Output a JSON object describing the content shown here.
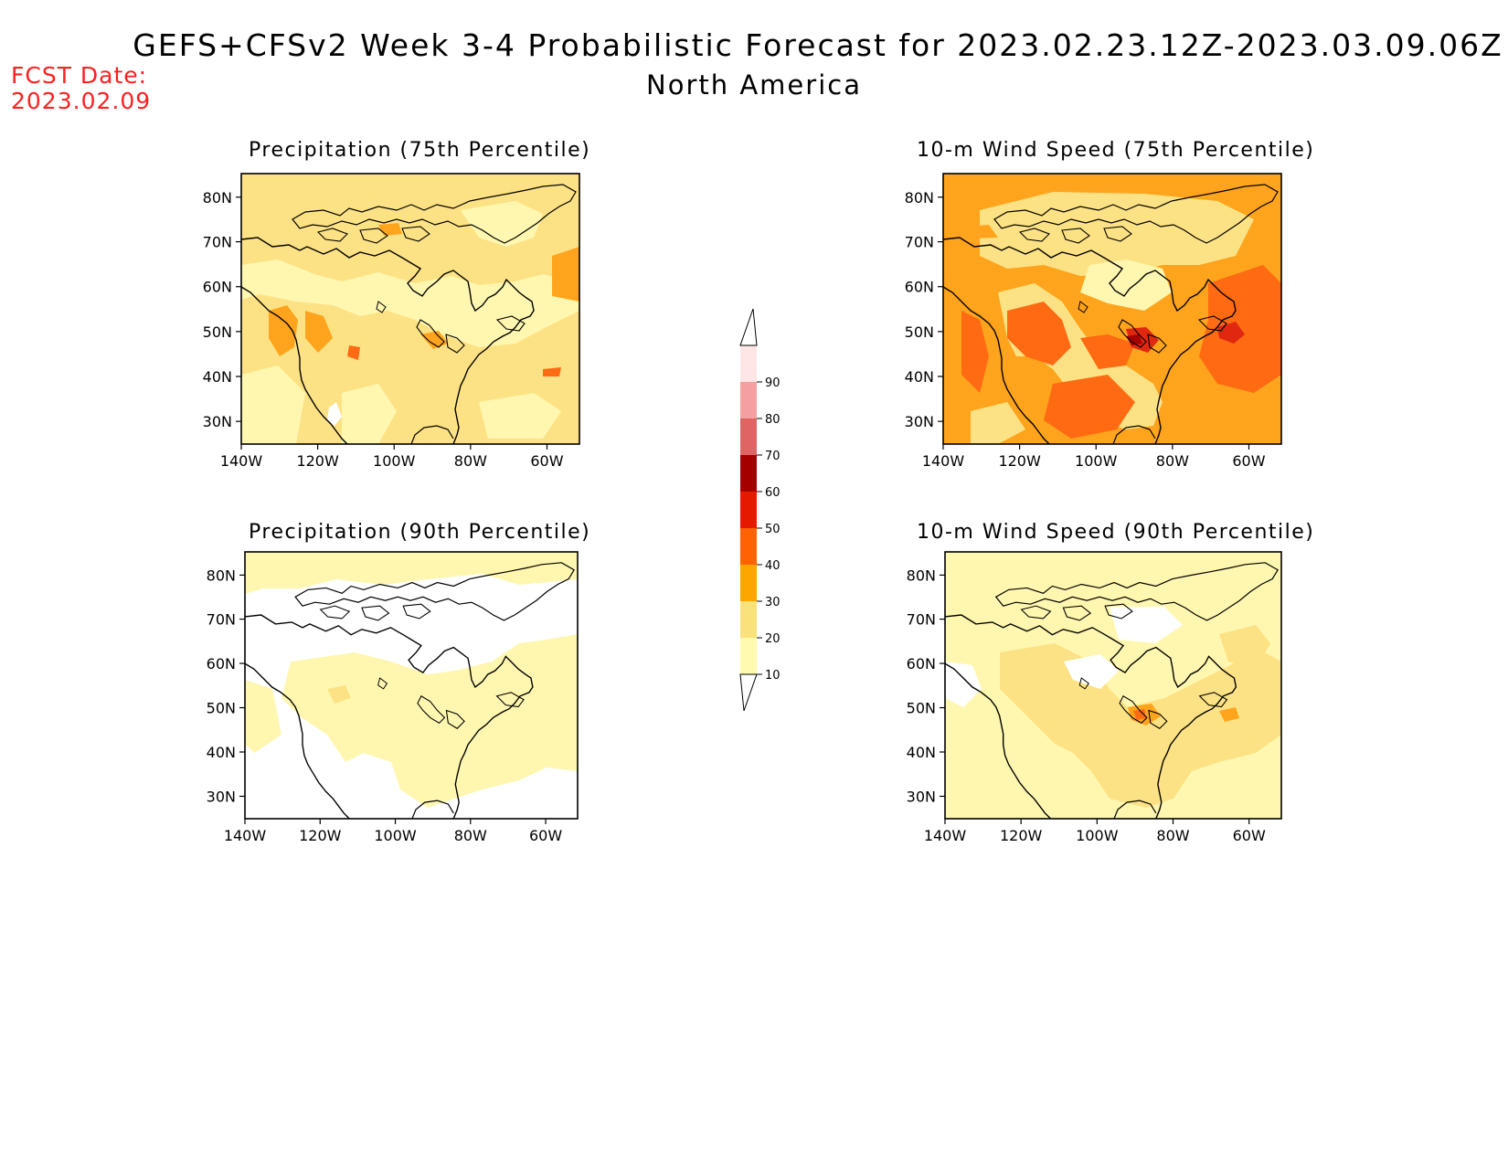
{
  "header": {
    "title": "GEFS+CFSv2 Week 3-4 Probabilistic Forecast for 2023.02.23.12Z-2023.03.09.06Z",
    "subtitle": "North America",
    "fcst_label": "FCST Date:",
    "fcst_date": "2023.02.09"
  },
  "panels": [
    {
      "id": "precip75",
      "title": "Precipitation (75th Percentile)"
    },
    {
      "id": "wind75",
      "title": "10-m Wind Speed (75th Percentile)"
    },
    {
      "id": "precip90",
      "title": "Precipitation (90th Percentile)"
    },
    {
      "id": "wind90",
      "title": "10-m Wind Speed (90th Percentile)"
    }
  ],
  "axes": {
    "lat_labels": [
      "80N",
      "70N",
      "60N",
      "50N",
      "40N",
      "30N"
    ],
    "lon_labels": [
      "140W",
      "120W",
      "100W",
      "80W",
      "60W"
    ]
  },
  "colorbar": {
    "labels": [
      "10",
      "20",
      "30",
      "40",
      "50",
      "60",
      "70",
      "80",
      "90"
    ],
    "colors": [
      "#fffab0",
      "#fbe17a",
      "#ffa500",
      "#ff6200",
      "#e31a00",
      "#a50000",
      "#e06464",
      "#f4a0a0",
      "#ffe6e6"
    ]
  },
  "colors": {
    "fcst_red": "#ff2020",
    "level_10": "#fff7b0",
    "level_20": "#fde285",
    "level_30": "#ffa41c",
    "level_40": "#ff6a12",
    "level_50": "#e02810"
  }
}
